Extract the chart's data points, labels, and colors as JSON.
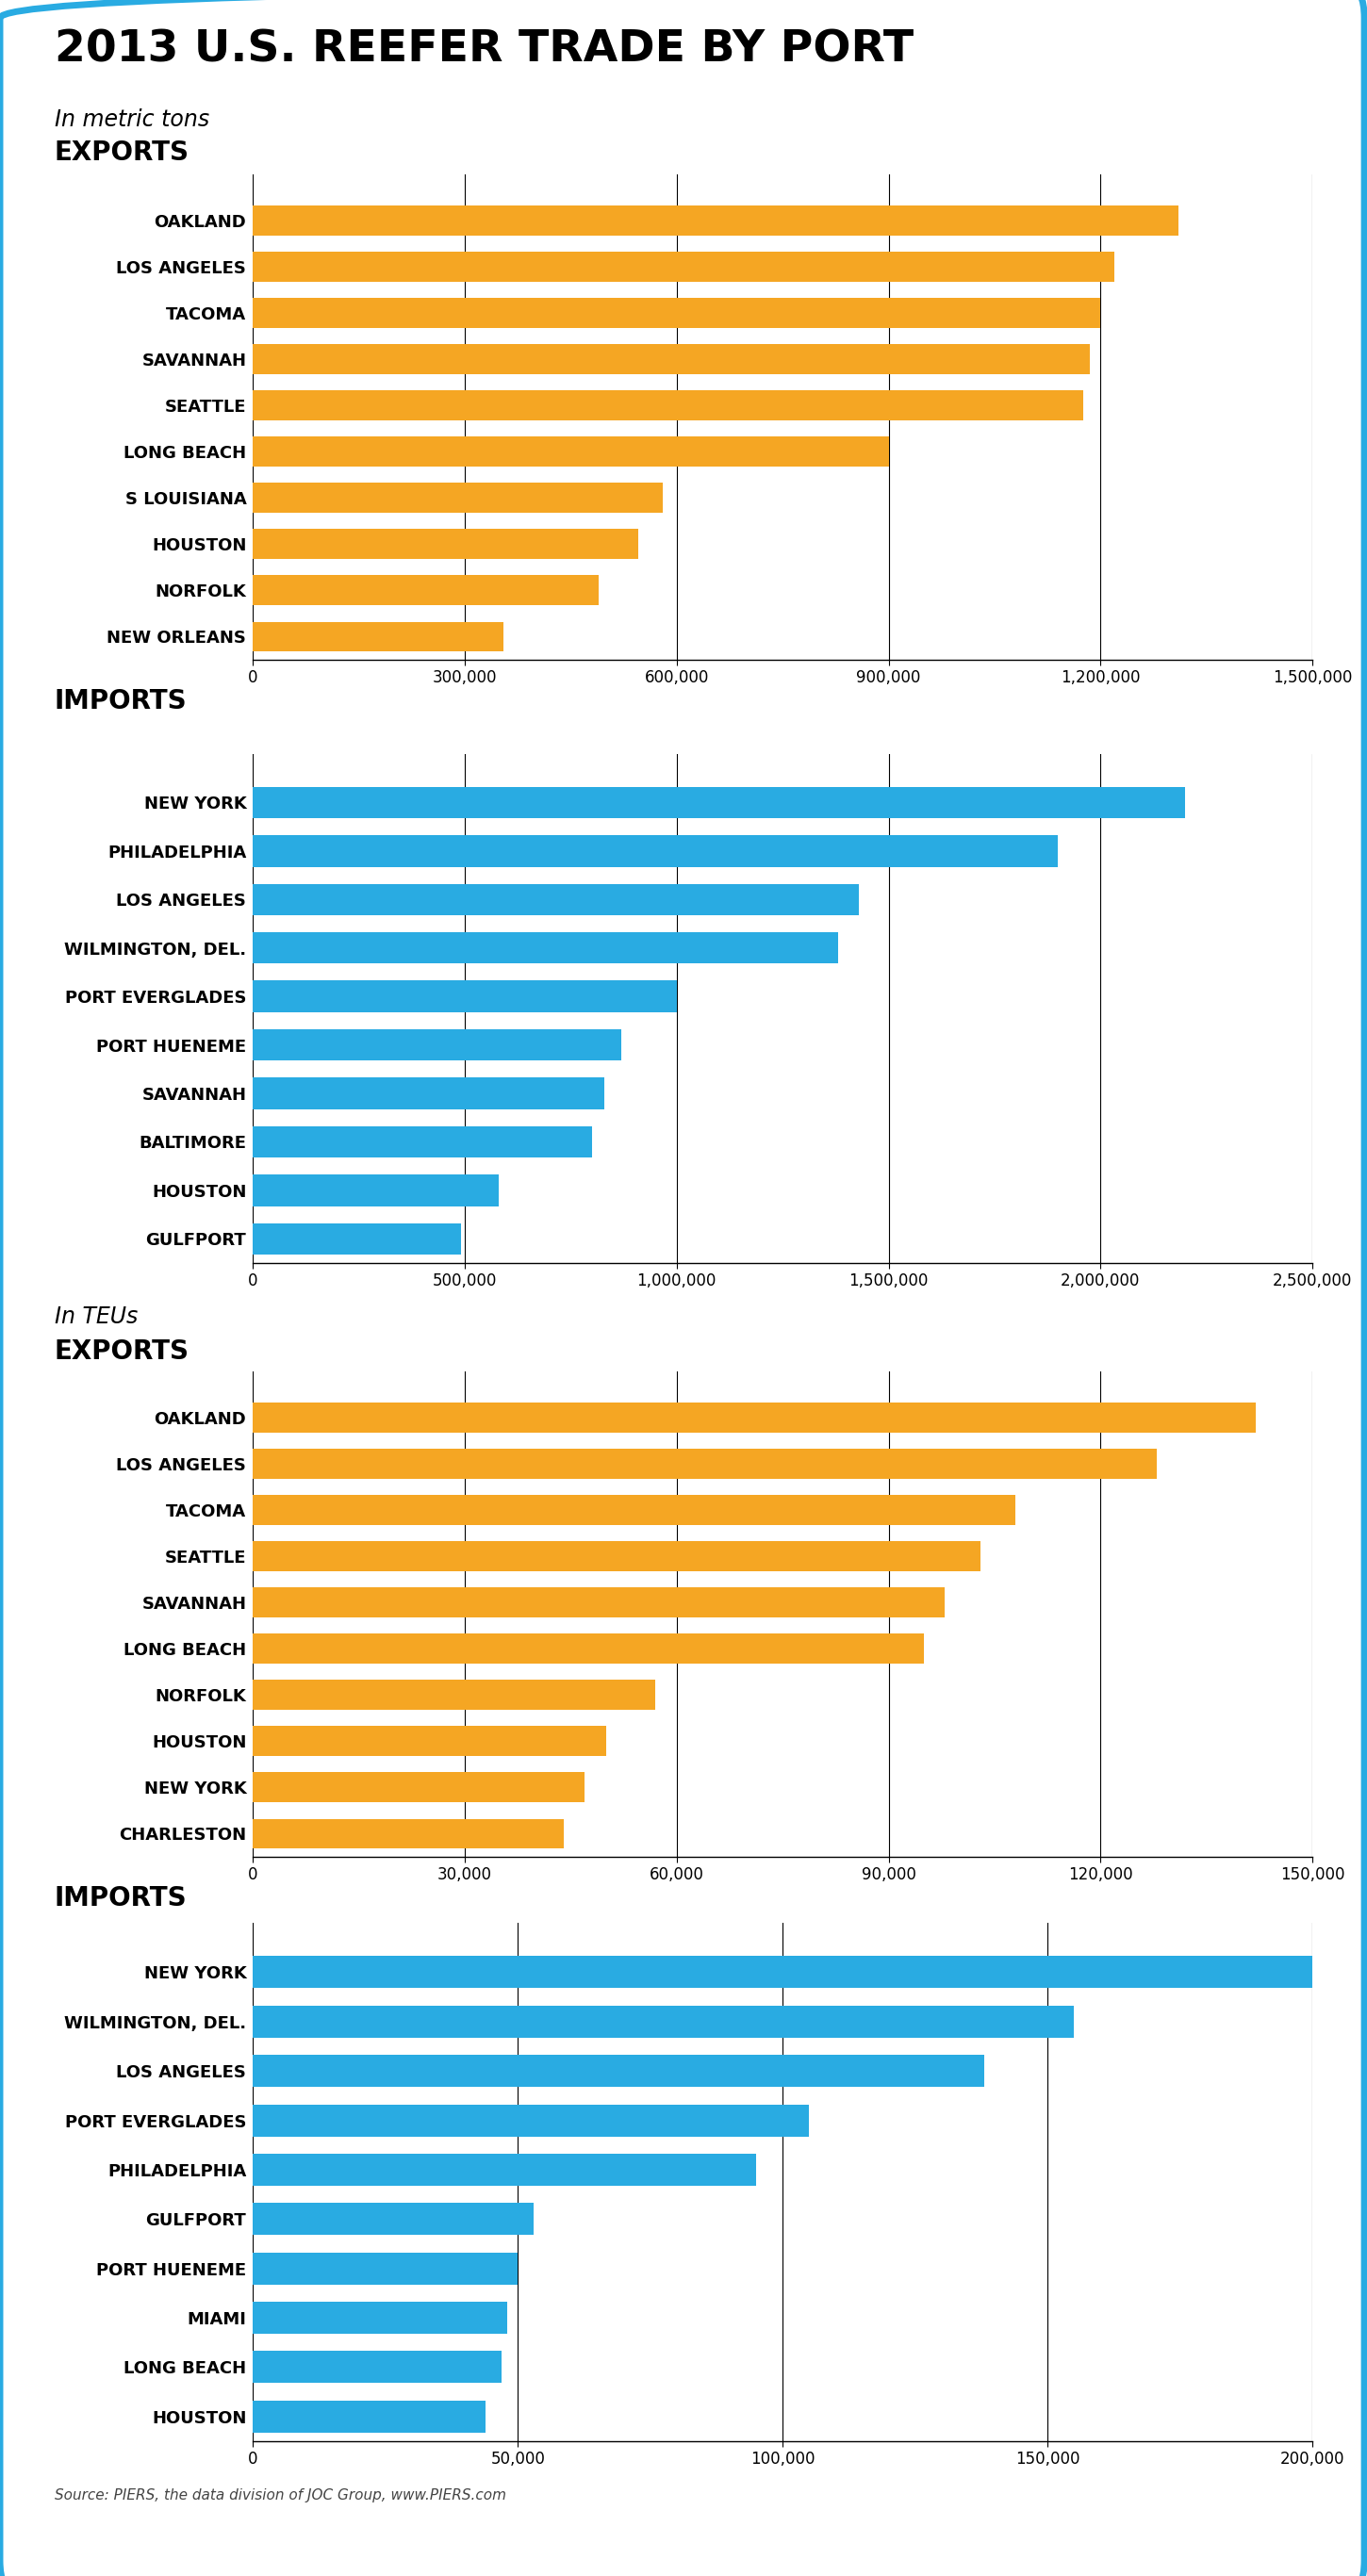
{
  "title": "2013 U.S. REEFER TRADE BY PORT",
  "bg_color": "#ffffff",
  "border_color": "#29abe2",
  "orange": "#f5a623",
  "blue": "#29abe2",
  "metric_tons_exports_labels": [
    "OAKLAND",
    "LOS ANGELES",
    "TACOMA",
    "SAVANNAH",
    "SEATTLE",
    "LONG BEACH",
    "S LOUISIANA",
    "HOUSTON",
    "NORFOLK",
    "NEW ORLEANS"
  ],
  "metric_tons_exports_values": [
    1310000,
    1220000,
    1200000,
    1185000,
    1175000,
    900000,
    580000,
    545000,
    490000,
    355000
  ],
  "metric_tons_exports_xlim": [
    0,
    1500000
  ],
  "metric_tons_exports_xticks": [
    0,
    300000,
    600000,
    900000,
    1200000,
    1500000
  ],
  "metric_tons_imports_labels": [
    "NEW YORK",
    "PHILADELPHIA",
    "LOS ANGELES",
    "WILMINGTON, DEL.",
    "PORT EVERGLADES",
    "PORT HUENEME",
    "SAVANNAH",
    "BALTIMORE",
    "HOUSTON",
    "GULFPORT"
  ],
  "metric_tons_imports_values": [
    2200000,
    1900000,
    1430000,
    1380000,
    1000000,
    870000,
    830000,
    800000,
    580000,
    490000
  ],
  "metric_tons_imports_xlim": [
    0,
    2500000
  ],
  "metric_tons_imports_xticks": [
    0,
    500000,
    1000000,
    1500000,
    2000000,
    2500000
  ],
  "teu_exports_labels": [
    "OAKLAND",
    "LOS ANGELES",
    "TACOMA",
    "SEATTLE",
    "SAVANNAH",
    "LONG BEACH",
    "NORFOLK",
    "HOUSTON",
    "NEW YORK",
    "CHARLESTON"
  ],
  "teu_exports_values": [
    142000,
    128000,
    108000,
    103000,
    98000,
    95000,
    57000,
    50000,
    47000,
    44000
  ],
  "teu_exports_xlim": [
    0,
    150000
  ],
  "teu_exports_xticks": [
    0,
    30000,
    60000,
    90000,
    120000,
    150000
  ],
  "teu_imports_labels": [
    "NEW YORK",
    "WILMINGTON, DEL.",
    "LOS ANGELES",
    "PORT EVERGLADES",
    "PHILADELPHIA",
    "GULFPORT",
    "PORT HUENEME",
    "MIAMI",
    "LONG BEACH",
    "HOUSTON"
  ],
  "teu_imports_values": [
    200000,
    155000,
    138000,
    105000,
    95000,
    53000,
    50000,
    48000,
    47000,
    44000
  ],
  "teu_imports_xlim": [
    0,
    200000
  ],
  "teu_imports_xticks": [
    0,
    50000,
    100000,
    150000,
    200000
  ],
  "source_text": "Source: PIERS, the data division of JOC Group, www.PIERS.com"
}
